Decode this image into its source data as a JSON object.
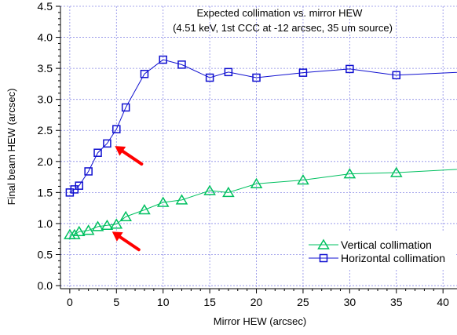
{
  "chart_data": {
    "type": "line",
    "title": "Expected collimation vs. mirror HEW",
    "subtitle": "(4.51 keV, 1st CCC at -12 arcsec, 35 um source)",
    "xlabel": "Mirror HEW (arcsec)",
    "ylabel": "Final beam HEW (arcsec)",
    "xlim": [
      -1,
      41.5
    ],
    "ylim": [
      -0.05,
      4.5
    ],
    "xticks": [
      0,
      5,
      10,
      15,
      20,
      25,
      30,
      35,
      40
    ],
    "yticks": [
      0.0,
      0.5,
      1.0,
      1.5,
      2.0,
      2.5,
      3.0,
      3.5,
      4.0,
      4.5
    ],
    "ytick_labels": [
      "0.0",
      "0.5",
      "1.0",
      "1.5",
      "2.0",
      "2.5",
      "3.0",
      "3.5",
      "4.0",
      "4.5"
    ],
    "grid": true,
    "legend_position": "bottom-right",
    "series": [
      {
        "name": "Vertical collimation",
        "color": "#00c060",
        "marker": "triangle",
        "x": [
          0,
          0.5,
          1,
          2,
          3,
          4,
          5,
          6,
          8,
          10,
          12,
          15,
          17,
          20,
          25,
          30,
          35,
          45
        ],
        "y": [
          0.82,
          0.82,
          0.87,
          0.89,
          0.95,
          0.97,
          0.99,
          1.11,
          1.22,
          1.34,
          1.38,
          1.53,
          1.5,
          1.64,
          1.7,
          1.8,
          1.82,
          1.9
        ]
      },
      {
        "name": "Horizontal collimation",
        "color": "#1010d0",
        "marker": "square",
        "x": [
          0,
          0.5,
          1,
          2,
          3,
          4,
          5,
          6,
          8,
          10,
          12,
          15,
          17,
          20,
          25,
          30,
          35,
          45
        ],
        "y": [
          1.5,
          1.55,
          1.61,
          1.84,
          2.14,
          2.29,
          2.52,
          2.87,
          3.41,
          3.64,
          3.56,
          3.35,
          3.44,
          3.35,
          3.43,
          3.49,
          3.39,
          3.46
        ]
      }
    ],
    "annotations": [
      {
        "type": "arrow",
        "color": "#ff0000",
        "points_to": {
          "x": 4.5,
          "y": 2.3
        }
      },
      {
        "type": "arrow",
        "color": "#ff0000",
        "points_to": {
          "x": 4.2,
          "y": 0.92
        }
      }
    ]
  }
}
